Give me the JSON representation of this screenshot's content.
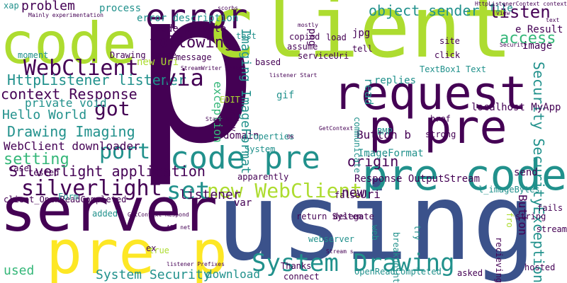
{
  "palette": {
    "dark_purple": "#440154",
    "blue": "#3b528b",
    "teal": "#21918c",
    "green": "#5ec962",
    "yellow_green": "#addc30",
    "yellow": "#fde725",
    "light_green": "#8fd744",
    "mid_green": "#35b779",
    "slate": "#31688e"
  },
  "words": [
    "p",
    "using",
    "client",
    "code",
    "server",
    "p pre",
    "request",
    "pre p",
    "pre code",
    "error",
    "WebClient",
    "new WebClient",
    "code pre",
    "System Drawing",
    "silverlight",
    "set",
    "got",
    "port",
    "Drawing Imaging",
    "object sender",
    "context Response",
    "Silverlight application",
    "HttpListener listener",
    "Hello World",
    "via",
    "WebClient downloader",
    "setting",
    "problem",
    "following",
    "listen",
    "access",
    "Imaging ImageFormat",
    "origin",
    "Security SecurityException",
    "System Security",
    "download",
    "listener",
    "exception",
    "localhost MyApp",
    "private void",
    "Button b",
    "ImageFormat",
    "Response OutputStream",
    "Button",
    "code private",
    "error description",
    "process",
    "TextBox1 Text",
    "used",
    "new",
    "replies",
    "file",
    "e Result",
    "image",
    "Uri",
    "jpg",
    "png",
    "read",
    "new Uri",
    "client_OpenReadCompleted",
    "Form",
    "send",
    "Drawing Image",
    "moment",
    "gif",
    "domain",
    "var",
    "apparently",
    "breakpoint",
    "return System",
    "delegate",
    "connect",
    "Thanks",
    "OpenReadCompleted",
    "hosted",
    "webserver",
    "stream",
    "string",
    "fails",
    "l_imageBytes",
    "asked",
    "ex",
    "true",
    "added",
    "properties",
    "strong",
    "href",
    "BMP",
    "communicate",
    "proxy",
    "EDIT",
    "based",
    "test",
    "tell",
    "load",
    "copied",
    "assume",
    "serviceUri",
    "click",
    "site",
    "System",
    "fro",
    "message",
    "tested",
    "case",
    "xap",
    "ASP net",
    "Stream s",
    "Ok",
    "try",
    "web",
    "false",
    "listener Prefixes",
    "GetContext Respond",
    "Start Wait",
    "listener Start",
    "StreamWriter writer",
    "HttpListenerContext context",
    "scorbs",
    "Mainly experimentation",
    "recieving",
    "Security",
    "mostly",
    "text",
    "view",
    "GetContext"
  ]
}
